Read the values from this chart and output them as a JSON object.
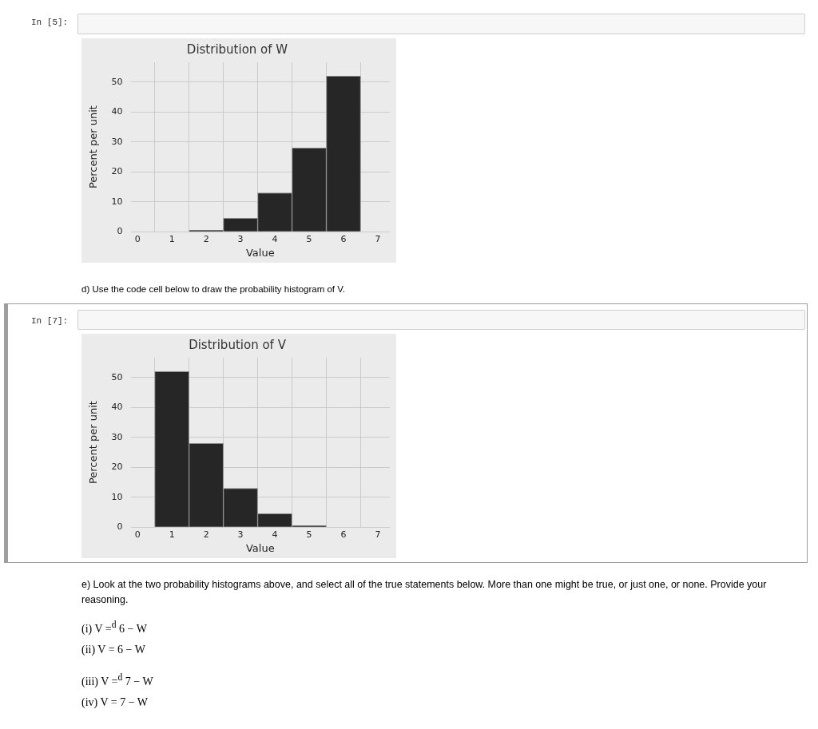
{
  "chart_data": [
    {
      "type": "histogram",
      "title": "Distribution of W",
      "xlabel": "Value",
      "ylabel": "Percent per unit",
      "bins": [
        1.5,
        2.5,
        3.5,
        4.5,
        5.5,
        6.5
      ],
      "values": [
        0.5,
        4.5,
        13,
        28,
        52
      ],
      "color": "#262626",
      "xlim": [
        -0.2,
        7.35
      ],
      "xticks": [
        0,
        1,
        2,
        3,
        4,
        5,
        6,
        7
      ],
      "ylim": [
        0,
        56.6
      ],
      "yticks": [
        0,
        10,
        20,
        30,
        40,
        50
      ],
      "grid": true,
      "annotations": [
        "In [5]:"
      ]
    },
    {
      "type": "histogram",
      "title": "Distribution of V",
      "xlabel": "Value",
      "ylabel": "Percent per unit",
      "bins": [
        0.5,
        1.5,
        2.5,
        3.5,
        4.5,
        5.5
      ],
      "values": [
        52,
        28,
        13,
        4.5,
        0.5
      ],
      "color": "#262626",
      "xlim": [
        -0.2,
        7.35
      ],
      "xticks": [
        0,
        1,
        2,
        3,
        4,
        5,
        6,
        7
      ],
      "ylim": [
        0,
        56.6
      ],
      "yticks": [
        0,
        10,
        20,
        30,
        40,
        50
      ],
      "grid": true,
      "annotations": [
        "d) Use the code cell below to draw the probability histogram of V.",
        "In [7]:",
        "e) Look at the two probability histograms above, and select all of the true statements below. More than one might be true, or just one, or none. Provide your reasoning.",
        "(i) V =$^{d}$ 6 − W",
        "(ii) V = 6 − W",
        "(iii) V =$^{d}$ 7 − W",
        "(iv) V = 7 − W"
      ]
    }
  ]
}
